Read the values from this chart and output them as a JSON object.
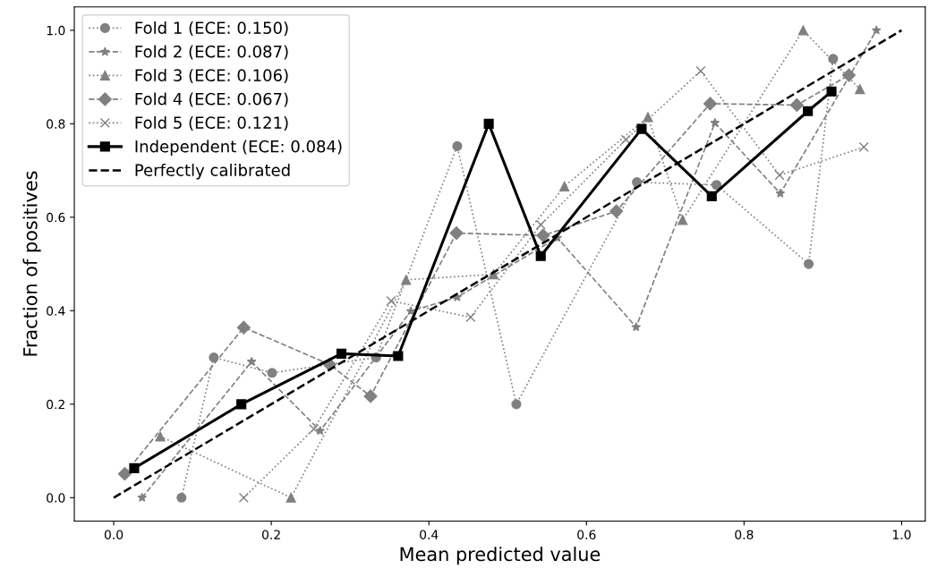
{
  "chart_data": {
    "type": "line",
    "xlabel": "Mean predicted value",
    "ylabel": "Fraction of positives",
    "xlim": [
      -0.05,
      1.03
    ],
    "ylim": [
      -0.05,
      1.05
    ],
    "xticks": [
      {
        "value": 0,
        "label": "0.0"
      },
      0.2,
      0.4,
      0.6,
      0.8,
      {
        "value": 1,
        "label": "1.0"
      }
    ],
    "yticks": [
      {
        "value": 0,
        "label": "0.0"
      },
      0.2,
      0.4,
      0.6,
      0.8,
      {
        "value": 1,
        "label": "1.0"
      }
    ],
    "grid": false,
    "legend": "top left",
    "series": [
      {
        "name": "Fold 1 (ECE: 0.150)",
        "color": "#808080",
        "marker": "circle",
        "line_style": "dotted",
        "x": [
          0.086,
          0.127,
          0.201,
          0.333,
          0.436,
          0.511,
          0.664,
          0.765,
          0.882,
          0.913
        ],
        "values": [
          0.0,
          0.3,
          0.267,
          0.3,
          0.752,
          0.2,
          0.675,
          0.669,
          0.5,
          0.939
        ]
      },
      {
        "name": "Fold 2 (ECE: 0.087)",
        "color": "#808080",
        "marker": "star",
        "line_style": "dashed",
        "x": [
          0.036,
          0.175,
          0.262,
          0.377,
          0.436,
          0.563,
          0.663,
          0.763,
          0.846,
          0.968
        ],
        "values": [
          0.0,
          0.291,
          0.143,
          0.399,
          0.429,
          0.556,
          0.365,
          0.802,
          0.651,
          1.0
        ]
      },
      {
        "name": "Fold 3 (ECE: 0.106)",
        "color": "#808080",
        "marker": "triangle",
        "line_style": "dotted",
        "x": [
          0.059,
          0.225,
          0.371,
          0.482,
          0.572,
          0.678,
          0.722,
          0.875,
          0.947
        ],
        "values": [
          0.131,
          0.0,
          0.466,
          0.478,
          0.666,
          0.814,
          0.594,
          1.0,
          0.874
        ]
      },
      {
        "name": "Fold 4 (ECE: 0.067)",
        "color": "#808080",
        "marker": "diamond",
        "line_style": "dashed",
        "x": [
          0.014,
          0.165,
          0.274,
          0.326,
          0.435,
          0.545,
          0.638,
          0.757,
          0.867,
          0.933
        ],
        "values": [
          0.051,
          0.364,
          0.285,
          0.217,
          0.566,
          0.561,
          0.613,
          0.843,
          0.84,
          0.904
        ]
      },
      {
        "name": "Fold 5 (ECE: 0.121)",
        "color": "#808080",
        "marker": "cross",
        "line_style": "dotted",
        "x": [
          0.165,
          0.254,
          0.352,
          0.453,
          0.542,
          0.65,
          0.745,
          0.845,
          0.952
        ],
        "values": [
          0.0,
          0.147,
          0.421,
          0.386,
          0.584,
          0.766,
          0.913,
          0.69,
          0.75
        ]
      },
      {
        "name": "Independent (ECE: 0.084)",
        "color": "#000000",
        "marker": "square",
        "line_style": "solid",
        "x": [
          0.026,
          0.162,
          0.289,
          0.361,
          0.476,
          0.542,
          0.67,
          0.759,
          0.881,
          0.911
        ],
        "values": [
          0.063,
          0.2,
          0.308,
          0.303,
          0.8,
          0.517,
          0.789,
          0.645,
          0.827,
          0.869
        ]
      },
      {
        "name": "Perfectly calibrated",
        "color": "#000000",
        "marker": "none",
        "line_style": "dashed",
        "x": [
          0,
          1
        ],
        "values": [
          0,
          1
        ]
      }
    ]
  }
}
